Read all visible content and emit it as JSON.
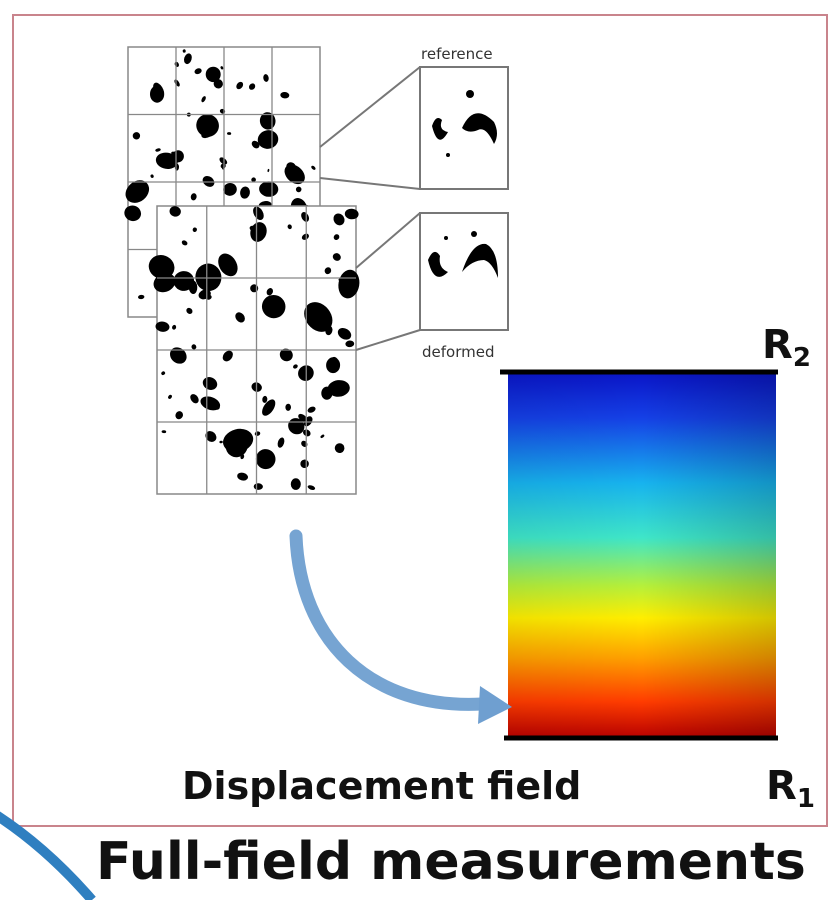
{
  "labels": {
    "reference": "reference",
    "deformed": "deformed",
    "r2_base": "R",
    "r2_sub": "2",
    "r1_base": "R",
    "r1_sub": "1",
    "caption": "Displacement field"
  },
  "title": "Full-field measurements",
  "colors": {
    "frame_border": "#c9848c",
    "arrow": "#6f9fd0",
    "corner_arc": "#2f7fc0",
    "speckle": "#000000",
    "grid": "#777777",
    "field_top": "#0a16c8",
    "field_bottom": "#b80000"
  },
  "icons": {
    "curved_arrow": "curved-arrow-icon"
  }
}
